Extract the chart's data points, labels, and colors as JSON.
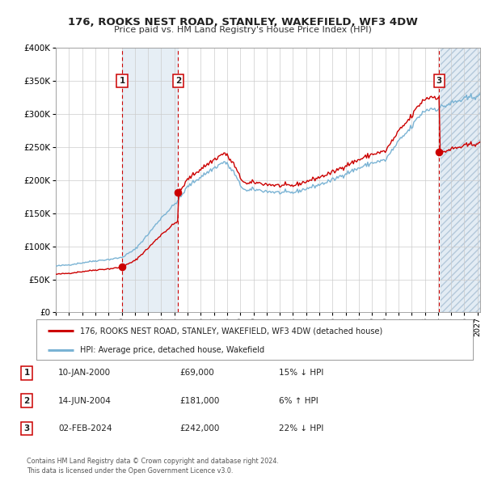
{
  "title": "176, ROOKS NEST ROAD, STANLEY, WAKEFIELD, WF3 4DW",
  "subtitle": "Price paid vs. HM Land Registry's House Price Index (HPI)",
  "ylim": [
    0,
    400000
  ],
  "yticks": [
    0,
    50000,
    100000,
    150000,
    200000,
    250000,
    300000,
    350000,
    400000
  ],
  "xlim_start": 1995.0,
  "xlim_end": 2027.2,
  "hpi_color": "#7ab3d4",
  "price_color": "#cc0000",
  "sale_dot_color": "#cc0000",
  "vline_color": "#cc0000",
  "shade_color": "#dce8f2",
  "legend_label_price": "176, ROOKS NEST ROAD, STANLEY, WAKEFIELD, WF3 4DW (detached house)",
  "legend_label_hpi": "HPI: Average price, detached house, Wakefield",
  "sales": [
    {
      "label": "1",
      "date_num": 2000.03,
      "price": 69000,
      "date_str": "10-JAN-2000",
      "pct": "15%",
      "dir": "↓"
    },
    {
      "label": "2",
      "date_num": 2004.29,
      "price": 181000,
      "date_str": "14-JUN-2004",
      "pct": "6%",
      "dir": "↑"
    },
    {
      "label": "3",
      "date_num": 2024.09,
      "price": 242000,
      "date_str": "02-FEB-2024",
      "pct": "22%",
      "dir": "↓"
    }
  ],
  "table_rows": [
    {
      "num": "1",
      "date": "10-JAN-2000",
      "price": "£69,000",
      "pct": "15% ↓ HPI"
    },
    {
      "num": "2",
      "date": "14-JUN-2004",
      "price": "£181,000",
      "pct": "6% ↑ HPI"
    },
    {
      "num": "3",
      "date": "02-FEB-2024",
      "price": "£242,000",
      "pct": "22% ↓ HPI"
    }
  ],
  "footer": "Contains HM Land Registry data © Crown copyright and database right 2024.\nThis data is licensed under the Open Government Licence v3.0.",
  "background_color": "#ffffff",
  "grid_color": "#cccccc",
  "hpi_key_points": {
    "1995.0": 70000,
    "1996.0": 72000,
    "1997.0": 75000,
    "1998.0": 78000,
    "1999.0": 80000,
    "2000.0": 83000,
    "2001.0": 95000,
    "2002.0": 118000,
    "2003.0": 143000,
    "2004.0": 163000,
    "2004.5": 175000,
    "2005.0": 190000,
    "2006.0": 205000,
    "2007.0": 218000,
    "2007.8": 228000,
    "2008.5": 212000,
    "2009.0": 192000,
    "2009.5": 183000,
    "2010.0": 186000,
    "2011.0": 183000,
    "2012.0": 181000,
    "2013.0": 181000,
    "2014.0": 187000,
    "2015.0": 193000,
    "2016.0": 200000,
    "2017.0": 210000,
    "2018.0": 218000,
    "2019.0": 226000,
    "2020.0": 230000,
    "2021.0": 258000,
    "2022.0": 280000,
    "2022.5": 295000,
    "2023.0": 305000,
    "2023.5": 308000,
    "2024.0": 308000,
    "2024.5": 312000,
    "2025.0": 316000,
    "2026.0": 322000,
    "2027.0": 328000
  }
}
